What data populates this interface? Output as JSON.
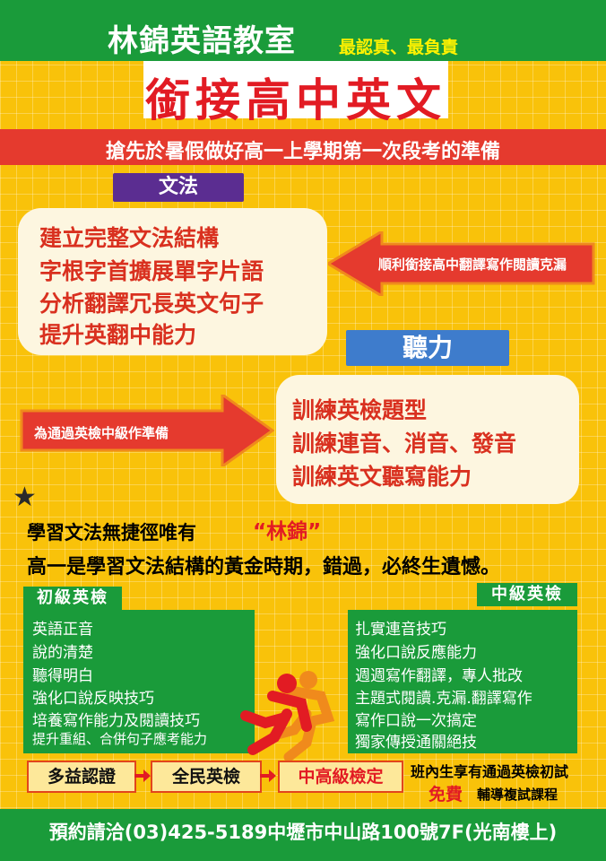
{
  "header": {
    "school": "林錦英語教室",
    "slogan": "最認真、最負責",
    "headline": "銜接高中英文",
    "subline": "搶先於暑假做好高一上學期第一次段考的準備"
  },
  "grammar": {
    "tag": "文法",
    "items": [
      "建立完整文法結構",
      "字根字首擴展單字片語",
      "分析翻譯冗長英文句子",
      "提升英翻中能力"
    ],
    "arrow_text": "順利銜接高中翻譯寫作閱讀克漏"
  },
  "listening": {
    "tag": "聽力",
    "items": [
      "訓練英檢題型",
      "訓練連音、消音、發音",
      "訓練英文聽寫能力"
    ],
    "arrow_text": "為通過英檢中級作準備"
  },
  "learn": {
    "line1": "學習文法無捷徑唯有",
    "highlight": "“林錦”",
    "line2": "高一是學習文法結構的黃金時期，錯過，必終生遺憾。"
  },
  "elementary": {
    "tag": "初級英檢",
    "items": [
      "英語正音",
      "說的清楚",
      "聽得明白",
      "強化口說反映技巧",
      "培養寫作能力及閱讀技巧",
      "提升重組、合併句子應考能力"
    ]
  },
  "intermediate": {
    "tag": "中級英檢",
    "items": [
      "扎實連音技巧",
      "強化口說反應能力",
      "週週寫作翻譯，專人批改",
      "主題式閱讀.克漏.翻譯寫作",
      "寫作口說一次搞定",
      "獨家傳授通關絕技"
    ]
  },
  "steps": [
    "多益認證",
    "全民英檢",
    "中高級檢定"
  ],
  "free": {
    "line1": "班內生享有通過英檢初試",
    "free_word": "免費",
    "line2": "輔導複試課程"
  },
  "contact": "預約請洽(03)425-5189中壢市中山路100號7F(光南樓上)",
  "colors": {
    "background": "#f9c20a",
    "green": "#1a9b3a",
    "red": "#e21b23",
    "purple": "#5b2d91",
    "blue": "#3e7ccc"
  }
}
